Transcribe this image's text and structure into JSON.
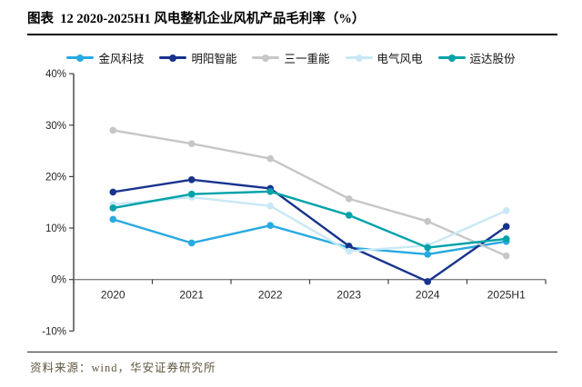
{
  "header": {
    "title": "图表  12 2020-2025H1 风电整机企业风机产品毛利率（%）"
  },
  "footer": {
    "source": "资料来源：wind，华安证券研究所"
  },
  "chart_data": {
    "type": "line",
    "title": "图表 12 2020-2025H1 风电整机企业风机产品毛利率（%）",
    "xlabel": "",
    "ylabel": "",
    "categories": [
      "2020",
      "2021",
      "2022",
      "2023",
      "2024",
      "2025H1"
    ],
    "series": [
      {
        "name": "金风科技",
        "color": "#27AAE1",
        "values": [
          11.7,
          7.1,
          10.5,
          6.2,
          4.9,
          7.4
        ]
      },
      {
        "name": "明阳智能",
        "color": "#17338D",
        "values": [
          17.0,
          19.4,
          17.7,
          6.5,
          -0.4,
          10.3
        ]
      },
      {
        "name": "三一重能",
        "color": "#C6C6C6",
        "values": [
          29.0,
          26.4,
          23.5,
          15.7,
          11.3,
          4.6
        ]
      },
      {
        "name": "电气风电",
        "color": "#C9E8F5",
        "values": [
          14.6,
          16.0,
          14.3,
          5.5,
          6.6,
          13.4
        ]
      },
      {
        "name": "运达股份",
        "color": "#00A2A9",
        "values": [
          13.9,
          16.6,
          17.1,
          12.5,
          6.2,
          7.9
        ]
      }
    ],
    "ylim": [
      -10,
      40
    ],
    "yticks": [
      {
        "value": 40,
        "label": "40%"
      },
      {
        "value": 30,
        "label": "30%"
      },
      {
        "value": 20,
        "label": "20%"
      },
      {
        "value": 10,
        "label": "10%"
      },
      {
        "value": 0,
        "label": "0%"
      },
      {
        "value": -10,
        "label": "-10%"
      }
    ],
    "grid": false,
    "legend_position": "top",
    "marker": "circle",
    "axis_colors": {
      "y_axis": "#404040",
      "x_axis": "#808080",
      "tick": "#404040"
    }
  }
}
